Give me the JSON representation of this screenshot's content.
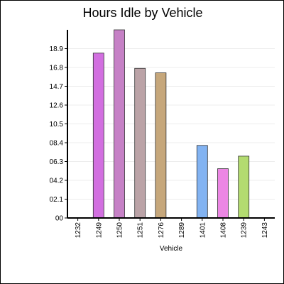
{
  "chart_data": {
    "type": "bar",
    "title": "Hours Idle by Vehicle",
    "xlabel": "Vehicle",
    "ylabel": "",
    "ylim": [
      0,
      21
    ],
    "grid": true,
    "legend": "none",
    "y_ticks": [
      {
        "value": 0,
        "label": "00"
      },
      {
        "value": 2.1,
        "label": "02.1"
      },
      {
        "value": 4.2,
        "label": "04.2"
      },
      {
        "value": 6.3,
        "label": "06.3"
      },
      {
        "value": 8.4,
        "label": "08.4"
      },
      {
        "value": 10.5,
        "label": "10.5"
      },
      {
        "value": 12.6,
        "label": "12.6"
      },
      {
        "value": 14.7,
        "label": "14.7"
      },
      {
        "value": 16.8,
        "label": "16.8"
      },
      {
        "value": 18.9,
        "label": "18.9"
      }
    ],
    "categories": [
      "1232",
      "1249",
      "1250",
      "1251",
      "1276",
      "1289",
      "1401",
      "1408",
      "1239",
      "1243"
    ],
    "values": [
      0,
      18.4,
      21.0,
      16.7,
      16.2,
      0,
      8.1,
      5.5,
      6.9,
      0
    ],
    "colors": [
      "#cccccc",
      "#d26fe0",
      "#c681c6",
      "#bba3a7",
      "#c6a77b",
      "#cccccc",
      "#82b3f2",
      "#ec86e4",
      "#b3db70",
      "#cccccc"
    ]
  }
}
